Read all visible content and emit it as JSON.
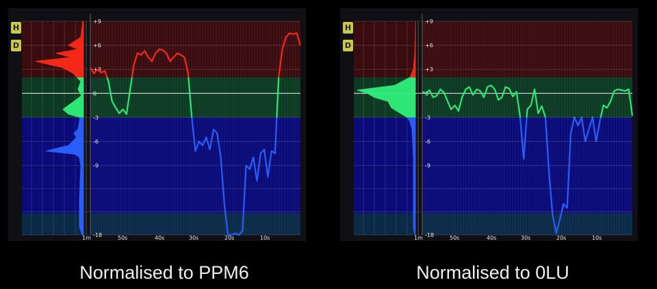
{
  "buttons": {
    "h": "H",
    "d": "D"
  },
  "chart_data": [
    {
      "type": "line",
      "title": "",
      "caption": "Normalised to PPM6",
      "ylim": [
        -18,
        9
      ],
      "y_ticks": [
        "+9",
        "+6",
        "+3",
        "0",
        "-3",
        "-6",
        "-9",
        "-18"
      ],
      "x_ticks": [
        "1m",
        "50s",
        "40s",
        "30s",
        "20s",
        "10s"
      ],
      "series": [
        {
          "x": [
            58,
            57,
            56,
            55,
            54,
            53,
            52,
            51,
            50,
            49,
            48,
            47,
            46,
            45,
            44,
            43,
            42,
            41,
            40,
            39,
            38,
            37,
            36,
            35,
            34,
            33,
            32,
            31,
            30,
            29,
            28,
            27,
            26,
            25,
            24,
            23,
            22,
            21,
            20,
            19,
            18,
            17,
            16,
            15,
            14,
            13,
            12,
            11,
            10,
            9,
            8,
            7,
            6,
            5,
            4,
            3,
            2,
            1,
            0
          ],
          "y": [
            3.2,
            2.5,
            3.0,
            2.6,
            2.8,
            1.5,
            -1.0,
            -1.8,
            -2.5,
            -2.0,
            -2.6,
            0.5,
            3.5,
            5.0,
            4.8,
            5.3,
            4.5,
            4.0,
            5.0,
            5.5,
            5.4,
            5.0,
            4.0,
            4.5,
            5.0,
            4.8,
            4.5,
            2.5,
            -3.0,
            -7.2,
            -6.0,
            -6.5,
            -5.5,
            -7.0,
            -4.5,
            -5.0,
            -8.0,
            -14.0,
            -18.0,
            -18.0,
            -17.8,
            -18.0,
            -17.5,
            -9.0,
            -9.5,
            -8.0,
            -11.0,
            -7.5,
            -7.0,
            -10.5,
            -7.2,
            -7.5,
            2.0,
            5.5,
            7.0,
            7.5,
            7.4,
            7.5,
            6.0
          ]
        }
      ]
    },
    {
      "type": "line",
      "title": "",
      "caption": "Normalised to 0LU",
      "ylim": [
        -18,
        9
      ],
      "y_ticks": [
        "+9",
        "+6",
        "+3",
        "0",
        "-3",
        "-6",
        "-9",
        "-18"
      ],
      "x_ticks": [
        "1m",
        "50s",
        "40s",
        "30s",
        "20s",
        "10s"
      ],
      "series": [
        {
          "x": [
            58,
            57,
            56,
            55,
            54,
            53,
            52,
            51,
            50,
            49,
            48,
            47,
            46,
            45,
            44,
            43,
            42,
            41,
            40,
            39,
            38,
            37,
            36,
            35,
            34,
            33,
            32,
            31,
            30,
            29,
            28,
            27,
            26,
            25,
            24,
            23,
            22,
            21,
            20,
            19,
            18,
            17,
            16,
            15,
            14,
            13,
            12,
            11,
            10,
            9,
            8,
            7,
            6,
            5,
            4,
            3,
            2,
            1,
            0
          ],
          "y": [
            0.2,
            0.0,
            0.4,
            -0.5,
            -0.3,
            0.5,
            0.1,
            -1.0,
            -2.0,
            -1.5,
            -2.2,
            -0.5,
            0.5,
            0.8,
            -0.2,
            0.5,
            0.3,
            -0.5,
            0.8,
            1.0,
            0.5,
            -0.8,
            -0.5,
            0.8,
            0.6,
            -0.4,
            0.2,
            -2.8,
            -8.2,
            -2.0,
            -1.5,
            0.5,
            -2.5,
            -1.6,
            -3.0,
            -10.0,
            -15.5,
            -17.8,
            -16.0,
            -14.0,
            -14.5,
            -5.0,
            -3.0,
            -4.0,
            -3.0,
            -6.0,
            -4.5,
            -3.0,
            -6.0,
            -3.5,
            -1.5,
            -1.8,
            -1.0,
            0.3,
            0.5,
            0.4,
            0.3,
            0.5,
            -2.8
          ]
        }
      ]
    }
  ]
}
